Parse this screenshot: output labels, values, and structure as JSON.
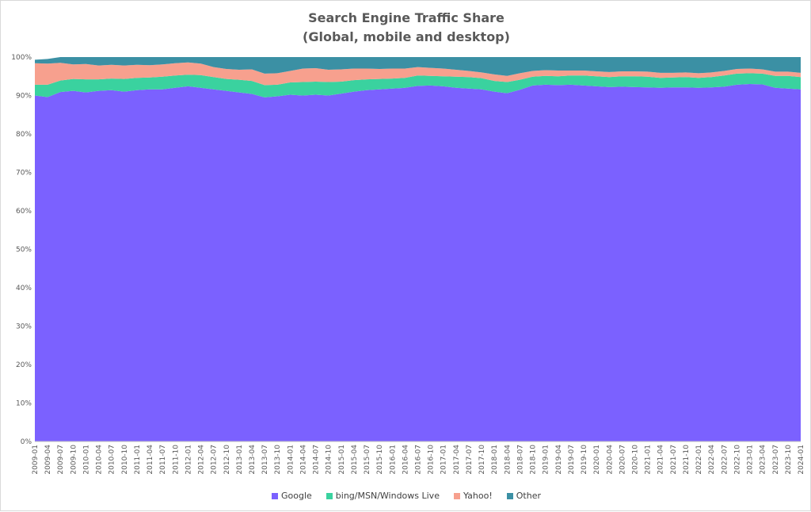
{
  "chart_data": {
    "type": "area",
    "stacked": true,
    "title_line1": "Search Engine Traffic Share",
    "title_line2": "(Global, mobile and desktop)",
    "xlabel": "",
    "ylabel": "",
    "ylim": [
      0,
      100
    ],
    "y_ticks": [
      "0%",
      "10%",
      "20%",
      "30%",
      "40%",
      "50%",
      "60%",
      "70%",
      "80%",
      "90%",
      "100%"
    ],
    "x_ticks": [
      "2009-01",
      "2009-04",
      "2009-07",
      "2009-10",
      "2010-01",
      "2010-04",
      "2010-07",
      "2010-10",
      "2011-01",
      "2011-04",
      "2011-07",
      "2011-10",
      "2012-01",
      "2012-04",
      "2012-07",
      "2012-10",
      "2013-01",
      "2013-04",
      "2013-07",
      "2013-10",
      "2014-01",
      "2014-04",
      "2014-07",
      "2014-10",
      "2015-01",
      "2015-04",
      "2015-07",
      "2015-10",
      "2016-01",
      "2016-04",
      "2016-07",
      "2016-10",
      "2017-01",
      "2017-04",
      "2017-07",
      "2017-10",
      "2018-01",
      "2018-04",
      "2018-07",
      "2018-10",
      "2019-01",
      "2019-04",
      "2019-07",
      "2019-10",
      "2020-01",
      "2020-04",
      "2020-07",
      "2020-10",
      "2021-01",
      "2021-04",
      "2021-07",
      "2021-10",
      "2022-01",
      "2022-04",
      "2022-07",
      "2022-10",
      "2023-01",
      "2023-04",
      "2023-07",
      "2023-10",
      "2024-01"
    ],
    "legend_position": "bottom",
    "grid": false,
    "series": [
      {
        "name": "Google",
        "color": "#7b61ff",
        "values": [
          90.0,
          89.6,
          90.9,
          91.2,
          90.8,
          91.2,
          91.4,
          91.0,
          91.4,
          91.6,
          91.6,
          92.0,
          92.4,
          92.0,
          91.6,
          91.2,
          90.8,
          90.4,
          89.5,
          89.8,
          90.2,
          90.0,
          90.2,
          90.0,
          90.5,
          91.0,
          91.4,
          91.6,
          91.8,
          92.0,
          92.5,
          92.6,
          92.4,
          92.0,
          91.8,
          91.6,
          91.0,
          90.6,
          91.5,
          92.6,
          92.8,
          92.7,
          92.8,
          92.6,
          92.4,
          92.2,
          92.3,
          92.2,
          92.1,
          92.0,
          92.1,
          92.1,
          92.0,
          92.1,
          92.3,
          92.8,
          93.0,
          92.9,
          92.0,
          91.8,
          91.6
        ]
      },
      {
        "name": "bing/MSN/Windows Live",
        "color": "#3ad29f",
        "values": [
          2.8,
          3.2,
          3.0,
          3.1,
          3.4,
          3.0,
          3.0,
          3.3,
          3.2,
          3.1,
          3.3,
          3.2,
          3.0,
          3.3,
          3.2,
          3.1,
          3.3,
          3.4,
          3.2,
          3.0,
          3.2,
          3.5,
          3.4,
          3.5,
          3.1,
          3.0,
          2.8,
          2.7,
          2.6,
          2.6,
          2.7,
          2.5,
          2.6,
          2.9,
          3.0,
          2.9,
          2.8,
          2.9,
          2.6,
          2.3,
          2.3,
          2.3,
          2.4,
          2.6,
          2.6,
          2.6,
          2.7,
          2.8,
          2.8,
          2.6,
          2.6,
          2.7,
          2.6,
          2.7,
          2.9,
          2.9,
          2.8,
          2.8,
          3.1,
          3.3,
          3.2
        ]
      },
      {
        "name": "Yahoo!",
        "color": "#f7a08e",
        "values": [
          5.6,
          5.5,
          4.6,
          3.8,
          4.0,
          3.6,
          3.6,
          3.5,
          3.4,
          3.2,
          3.2,
          3.2,
          3.2,
          3.0,
          2.6,
          2.6,
          2.6,
          3.0,
          3.0,
          3.0,
          3.0,
          3.5,
          3.5,
          3.2,
          3.2,
          3.0,
          2.8,
          2.6,
          2.6,
          2.4,
          2.2,
          2.1,
          2.0,
          1.8,
          1.6,
          1.5,
          1.7,
          1.6,
          1.7,
          1.5,
          1.5,
          1.5,
          1.3,
          1.3,
          1.3,
          1.3,
          1.3,
          1.3,
          1.3,
          1.3,
          1.2,
          1.2,
          1.2,
          1.2,
          1.2,
          1.2,
          1.2,
          1.1,
          1.1,
          1.1,
          1.1
        ]
      },
      {
        "name": "Other",
        "color": "#3b90a4",
        "values": [
          0.9,
          1.2,
          1.5,
          1.9,
          1.8,
          2.2,
          2.0,
          2.2,
          2.0,
          2.1,
          1.9,
          1.6,
          1.4,
          1.7,
          2.6,
          3.1,
          3.3,
          3.2,
          4.3,
          4.2,
          3.6,
          3.0,
          2.9,
          3.3,
          3.2,
          3.0,
          3.0,
          3.1,
          3.0,
          3.0,
          2.6,
          2.8,
          3.0,
          3.3,
          3.6,
          4.0,
          4.5,
          4.9,
          4.2,
          3.6,
          3.4,
          3.5,
          3.5,
          3.5,
          3.7,
          3.9,
          3.7,
          3.7,
          3.8,
          4.1,
          4.1,
          4.0,
          4.2,
          4.0,
          3.6,
          3.1,
          3.0,
          3.2,
          3.8,
          3.8,
          4.1
        ]
      }
    ]
  }
}
